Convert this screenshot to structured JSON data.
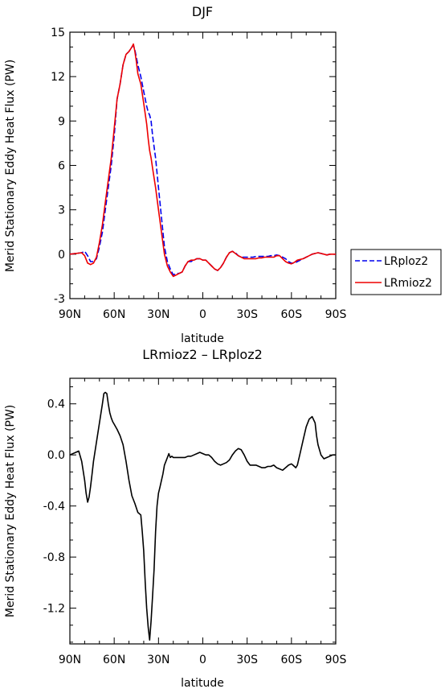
{
  "chart_data": [
    {
      "type": "line",
      "title": "DJF",
      "xlabel": "latitude",
      "ylabel": "Merid Stationary Eddy Heat Flux (PW)",
      "xlim": [
        90,
        -90
      ],
      "ylim": [
        -3,
        15
      ],
      "yticks": [
        -3,
        0,
        3,
        6,
        9,
        12,
        15
      ],
      "ytick_labels": [
        "-3",
        "0",
        "3",
        "6",
        "9",
        "12",
        "15"
      ],
      "xticks": [
        90,
        60,
        30,
        0,
        -30,
        -60,
        -90
      ],
      "xtick_labels": [
        "90N",
        "60N",
        "30N",
        "0",
        "30S",
        "60S",
        "90S"
      ],
      "legend_position": "right",
      "series": [
        {
          "name": "LRploz2",
          "color": "#0000ee",
          "style": "dashed",
          "x": [
            90,
            82,
            80,
            78,
            76,
            74,
            72,
            70,
            68,
            66,
            64,
            62,
            60,
            58,
            56,
            54,
            52,
            50,
            48,
            47,
            46,
            45,
            44,
            42,
            40,
            38,
            37,
            36,
            35,
            34,
            32,
            30,
            28,
            26,
            24,
            22,
            20,
            18,
            16,
            14,
            12,
            10,
            8,
            6,
            4,
            2,
            0,
            -2,
            -4,
            -6,
            -8,
            -10,
            -12,
            -14,
            -16,
            -18,
            -20,
            -22,
            -24,
            -26,
            -28,
            -30,
            -32,
            -34,
            -36,
            -38,
            -40,
            -42,
            -44,
            -46,
            -48,
            -50,
            -52,
            -54,
            -56,
            -58,
            -60,
            -62,
            -64,
            -66,
            -68,
            -70,
            -72,
            -74,
            -76,
            -78,
            -80,
            -82,
            -84,
            -86,
            -88,
            -90
          ],
          "y": [
            0,
            0.1,
            0.2,
            -0.1,
            -0.5,
            -0.5,
            -0.3,
            0.5,
            1.5,
            3.0,
            4.5,
            6.0,
            8.0,
            10.5,
            11.5,
            12.8,
            13.5,
            13.7,
            14.0,
            14.1,
            13.8,
            13.3,
            12.8,
            12.0,
            11.0,
            10.0,
            9.6,
            9.4,
            9.0,
            8.0,
            6.5,
            4.5,
            2.5,
            0.5,
            -0.5,
            -1.0,
            -1.4,
            -1.3,
            -1.3,
            -1.2,
            -0.8,
            -0.5,
            -0.5,
            -0.4,
            -0.3,
            -0.3,
            -0.4,
            -0.4,
            -0.6,
            -0.8,
            -1.0,
            -1.1,
            -0.9,
            -0.6,
            -0.2,
            0.1,
            0.2,
            0.1,
            -0.1,
            -0.2,
            -0.2,
            -0.2,
            -0.2,
            -0.2,
            -0.15,
            -0.15,
            -0.15,
            -0.15,
            -0.15,
            -0.1,
            -0.1,
            -0.05,
            -0.1,
            -0.2,
            -0.3,
            -0.5,
            -0.6,
            -0.6,
            -0.5,
            -0.4,
            -0.3,
            -0.2,
            -0.1,
            0,
            0.05,
            0.1,
            0.05,
            0,
            -0.05,
            0,
            0,
            0
          ]
        },
        {
          "name": "LRmioz2",
          "color": "#ee0000",
          "style": "solid",
          "x": [
            90,
            82,
            80,
            78,
            76,
            74,
            72,
            70,
            68,
            66,
            64,
            62,
            60,
            58,
            56,
            54,
            52,
            50,
            48,
            47,
            46,
            45,
            44,
            42,
            40,
            38,
            37,
            36,
            35,
            34,
            32,
            30,
            28,
            26,
            24,
            22,
            20,
            18,
            16,
            14,
            12,
            10,
            8,
            6,
            4,
            2,
            0,
            -2,
            -4,
            -6,
            -8,
            -10,
            -12,
            -14,
            -16,
            -18,
            -20,
            -22,
            -24,
            -26,
            -28,
            -30,
            -32,
            -34,
            -36,
            -38,
            -40,
            -42,
            -44,
            -46,
            -48,
            -50,
            -52,
            -54,
            -56,
            -58,
            -60,
            -62,
            -64,
            -66,
            -68,
            -70,
            -72,
            -74,
            -76,
            -78,
            -80,
            -82,
            -84,
            -86,
            -88,
            -90
          ],
          "y": [
            0,
            0.1,
            -0.1,
            -0.6,
            -0.7,
            -0.6,
            -0.2,
            0.8,
            2.0,
            3.5,
            5.0,
            6.5,
            8.5,
            10.5,
            11.5,
            12.8,
            13.5,
            13.7,
            14.0,
            14.2,
            13.7,
            13.0,
            12.2,
            11.5,
            10.2,
            8.8,
            7.8,
            7.0,
            6.5,
            5.8,
            4.5,
            3.0,
            1.5,
            0,
            -0.8,
            -1.2,
            -1.5,
            -1.4,
            -1.3,
            -1.2,
            -0.8,
            -0.5,
            -0.4,
            -0.4,
            -0.3,
            -0.3,
            -0.4,
            -0.4,
            -0.6,
            -0.8,
            -1.0,
            -1.1,
            -0.9,
            -0.6,
            -0.2,
            0.1,
            0.2,
            0.05,
            -0.1,
            -0.2,
            -0.3,
            -0.3,
            -0.3,
            -0.3,
            -0.3,
            -0.25,
            -0.25,
            -0.2,
            -0.2,
            -0.2,
            -0.2,
            -0.1,
            -0.1,
            -0.3,
            -0.5,
            -0.6,
            -0.65,
            -0.55,
            -0.4,
            -0.35,
            -0.3,
            -0.2,
            -0.1,
            0,
            0.05,
            0.1,
            0.05,
            0,
            -0.05,
            0,
            0,
            0
          ]
        }
      ]
    },
    {
      "type": "line",
      "title": "LRmioz2 – LRploz2",
      "xlabel": "latitude",
      "ylabel": "Merid Stationary Eddy Heat Flux (PW)",
      "xlim": [
        90,
        -90
      ],
      "ylim": [
        -1.48,
        0.6
      ],
      "yticks": [
        -1.2,
        -0.8,
        -0.4,
        0.0,
        0.4
      ],
      "ytick_labels": [
        "-1.2",
        "-0.8",
        "-0.4",
        "0.0",
        "0.4"
      ],
      "xticks": [
        90,
        60,
        30,
        0,
        -30,
        -60,
        -90
      ],
      "xtick_labels": [
        "90N",
        "60N",
        "30N",
        "0",
        "30S",
        "60S",
        "90S"
      ],
      "series": [
        {
          "color": "#000000",
          "style": "solid",
          "x": [
            90,
            86,
            84,
            82,
            80,
            79,
            78,
            77,
            76,
            75,
            74,
            72,
            70,
            68,
            67,
            66,
            65,
            64,
            63,
            62,
            61,
            60,
            58,
            56,
            54,
            52,
            50,
            48,
            46,
            44,
            42,
            41,
            40,
            39,
            38,
            37,
            36,
            35,
            34,
            33,
            32,
            31,
            30,
            29,
            28,
            27,
            26,
            24,
            23,
            22,
            21,
            20,
            18,
            16,
            14,
            12,
            10,
            8,
            6,
            4,
            2,
            0,
            -2,
            -4,
            -6,
            -8,
            -10,
            -12,
            -14,
            -16,
            -18,
            -20,
            -22,
            -24,
            -26,
            -28,
            -30,
            -32,
            -34,
            -36,
            -38,
            -40,
            -42,
            -44,
            -46,
            -48,
            -50,
            -52,
            -54,
            -56,
            -58,
            -60,
            -61,
            -62,
            -63,
            -64,
            -66,
            -68,
            -70,
            -72,
            -74,
            -76,
            -77,
            -78,
            -80,
            -82,
            -84,
            -86,
            -88,
            -90
          ],
          "y": [
            0,
            0.02,
            0.03,
            -0.05,
            -0.2,
            -0.3,
            -0.37,
            -0.33,
            -0.25,
            -0.15,
            -0.05,
            0.1,
            0.25,
            0.4,
            0.48,
            0.49,
            0.48,
            0.4,
            0.33,
            0.29,
            0.26,
            0.24,
            0.2,
            0.15,
            0.08,
            -0.05,
            -0.2,
            -0.32,
            -0.38,
            -0.45,
            -0.47,
            -0.6,
            -0.75,
            -1.0,
            -1.2,
            -1.35,
            -1.45,
            -1.3,
            -1.1,
            -0.9,
            -0.6,
            -0.4,
            -0.3,
            -0.25,
            -0.2,
            -0.15,
            -0.08,
            -0.02,
            0.01,
            -0.02,
            -0.01,
            -0.02,
            -0.02,
            -0.02,
            -0.02,
            -0.02,
            -0.01,
            -0.01,
            0,
            0.01,
            0.02,
            0.01,
            0,
            0,
            -0.02,
            -0.05,
            -0.07,
            -0.08,
            -0.07,
            -0.06,
            -0.04,
            0,
            0.03,
            0.05,
            0.04,
            0,
            -0.05,
            -0.08,
            -0.08,
            -0.08,
            -0.09,
            -0.1,
            -0.1,
            -0.09,
            -0.09,
            -0.08,
            -0.1,
            -0.11,
            -0.12,
            -0.1,
            -0.08,
            -0.07,
            -0.08,
            -0.09,
            -0.1,
            -0.08,
            0.02,
            0.12,
            0.22,
            0.28,
            0.3,
            0.25,
            0.15,
            0.08,
            0,
            -0.03,
            -0.02,
            -0.01,
            0,
            0
          ]
        }
      ]
    }
  ],
  "legend": [
    {
      "label": "LRploz2",
      "color": "#0000ee",
      "style": "dashed"
    },
    {
      "label": "LRmioz2",
      "color": "#ee0000",
      "style": "solid"
    }
  ]
}
